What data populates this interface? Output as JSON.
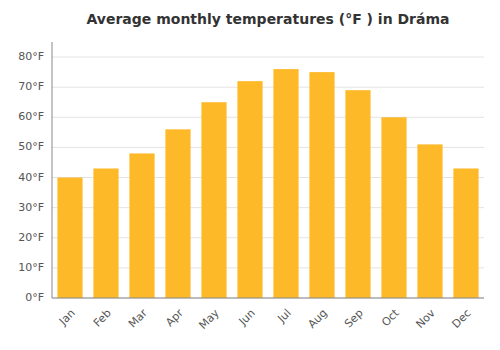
{
  "chart_data": {
    "type": "bar",
    "title": "Average monthly temperatures (°F ) in Dráma",
    "categories": [
      "Jan",
      "Feb",
      "Mar",
      "Apr",
      "May",
      "Jun",
      "Jul",
      "Aug",
      "Sep",
      "Oct",
      "Nov",
      "Dec"
    ],
    "values": [
      40,
      43,
      48,
      56,
      65,
      72,
      76,
      75,
      69,
      60,
      51,
      43
    ],
    "color": "#FDB927",
    "ylim": [
      0,
      85
    ],
    "yticks": [
      {
        "value": 0,
        "label": "0°F"
      },
      {
        "value": 10,
        "label": "10°F"
      },
      {
        "value": 20,
        "label": "20°F"
      },
      {
        "value": 30,
        "label": "30°F"
      },
      {
        "value": 40,
        "label": "40°F"
      },
      {
        "value": 50,
        "label": "50°F"
      },
      {
        "value": 60,
        "label": "60°F"
      },
      {
        "value": 70,
        "label": "70°F"
      },
      {
        "value": 80,
        "label": "80°F"
      }
    ],
    "grid": true
  }
}
